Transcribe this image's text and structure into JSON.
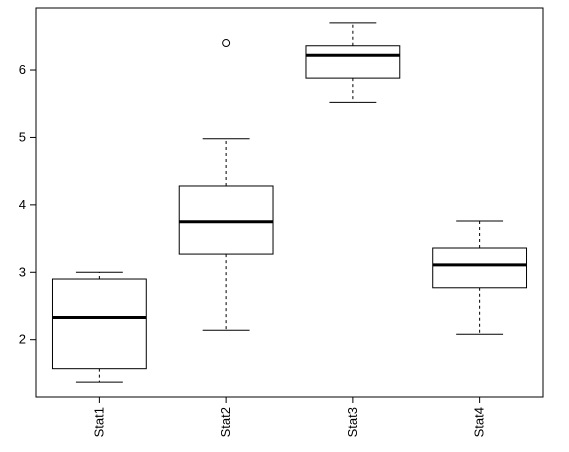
{
  "chart_data": {
    "type": "boxplot",
    "title": "",
    "xlabel": "",
    "ylabel": "",
    "categories": [
      "Stat1",
      "Stat2",
      "Stat3",
      "Stat4"
    ],
    "y_ticks": [
      2,
      3,
      4,
      5,
      6
    ],
    "ylim": [
      1.15,
      6.92
    ],
    "grid": false,
    "legend": "none",
    "boxes": [
      {
        "name": "Stat1",
        "whisker_low": 1.37,
        "q1": 1.57,
        "median": 2.33,
        "q3": 2.9,
        "whisker_high": 3.0,
        "outliers": []
      },
      {
        "name": "Stat2",
        "whisker_low": 2.14,
        "q1": 3.27,
        "median": 3.75,
        "q3": 4.28,
        "whisker_high": 4.98,
        "outliers": [
          6.4
        ]
      },
      {
        "name": "Stat3",
        "whisker_low": 5.52,
        "q1": 5.88,
        "median": 6.22,
        "q3": 6.36,
        "whisker_high": 6.7,
        "outliers": []
      },
      {
        "name": "Stat4",
        "whisker_low": 2.08,
        "q1": 2.77,
        "median": 3.11,
        "q3": 3.36,
        "whisker_high": 3.76,
        "outliers": []
      }
    ],
    "colors": {
      "stroke": "#000000",
      "fill": "#ffffff"
    }
  }
}
